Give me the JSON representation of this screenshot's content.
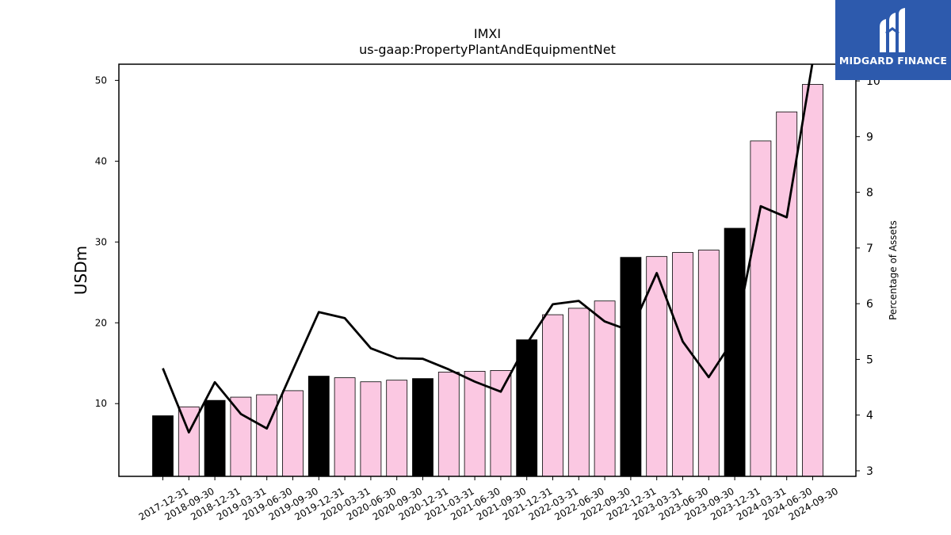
{
  "logo": {
    "text": "MIDGARD FINANCE",
    "icon": "midgard-m-logo-icon",
    "color": "#2d5aad"
  },
  "chart_data": {
    "type": "bar",
    "title": "IMXI",
    "subtitle": "us-gaap:PropertyPlantAndEquipmentNet",
    "ylabel": "USDm",
    "y2label": "Percentage of Assets",
    "ylim": [
      1,
      52
    ],
    "y2lim": [
      2.9,
      10.3
    ],
    "yticks": [
      10,
      20,
      30,
      40,
      50
    ],
    "y2ticks": [
      3,
      4,
      5,
      6,
      7,
      8,
      9,
      10
    ],
    "grid": false,
    "categories": [
      "2017-12-31",
      "2018-09-30",
      "2018-12-31",
      "2019-03-31",
      "2019-06-30",
      "2019-09-30",
      "2019-12-31",
      "2020-03-31",
      "2020-06-30",
      "2020-09-30",
      "2020-12-31",
      "2021-03-31",
      "2021-06-30",
      "2021-09-30",
      "2021-12-31",
      "2022-03-31",
      "2022-06-30",
      "2022-09-30",
      "2022-12-31",
      "2023-03-31",
      "2023-06-30",
      "2023-09-30",
      "2023-12-31",
      "2024-03-31",
      "2024-06-30",
      "2024-09-30"
    ],
    "series": [
      {
        "kind": "bar",
        "values": [
          8.5,
          9.6,
          10.4,
          10.8,
          11.1,
          11.6,
          13.4,
          13.2,
          12.7,
          12.9,
          13.1,
          13.9,
          14.0,
          14.1,
          17.9,
          21.0,
          21.8,
          22.7,
          28.1,
          28.2,
          28.7,
          29.0,
          31.7,
          42.5,
          46.1,
          49.5
        ],
        "colors": [
          "#000000",
          "#fbc8e2",
          "#000000",
          "#fbc8e2",
          "#fbc8e2",
          "#fbc8e2",
          "#000000",
          "#fbc8e2",
          "#fbc8e2",
          "#fbc8e2",
          "#000000",
          "#fbc8e2",
          "#fbc8e2",
          "#fbc8e2",
          "#000000",
          "#fbc8e2",
          "#fbc8e2",
          "#fbc8e2",
          "#000000",
          "#fbc8e2",
          "#fbc8e2",
          "#fbc8e2",
          "#000000",
          "#fbc8e2",
          "#fbc8e2",
          "#fbc8e2"
        ]
      },
      {
        "kind": "line",
        "axis": "right",
        "color": "#000000",
        "values": [
          4.84,
          3.69,
          4.59,
          4.02,
          3.76,
          4.81,
          5.85,
          5.74,
          5.2,
          5.02,
          5.01,
          4.82,
          4.6,
          4.42,
          5.28,
          5.99,
          6.05,
          5.68,
          5.51,
          6.55,
          5.32,
          4.68,
          5.39,
          7.75,
          7.55,
          10.35
        ]
      }
    ]
  }
}
